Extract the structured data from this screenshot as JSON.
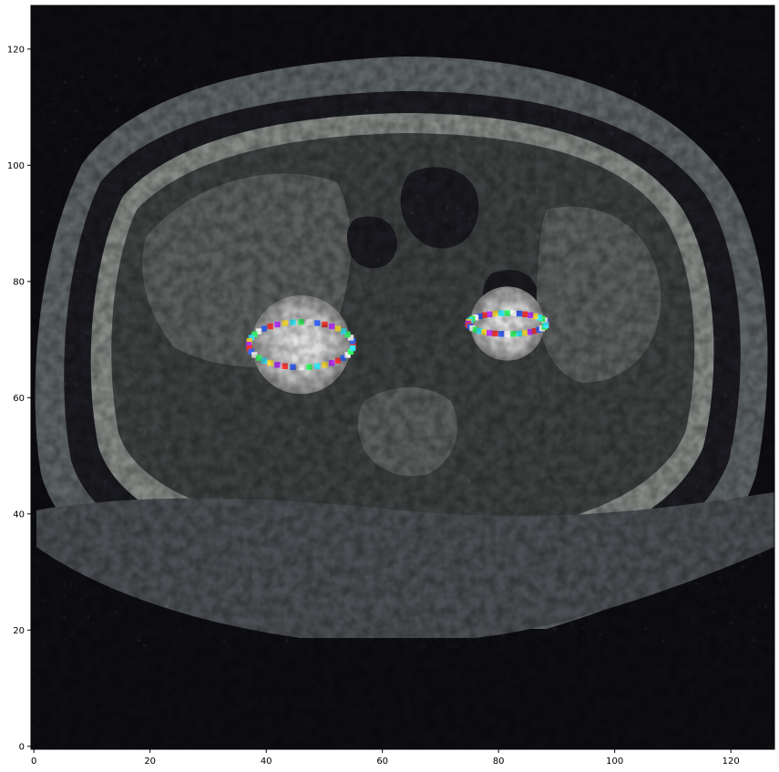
{
  "image": {
    "kind": "axial CT slice (abdomen) with segmentation overlay",
    "background_color": "#0e0d12",
    "body_tone": "#5e6464",
    "soft_tissue_tone": "#858a86",
    "dark_tissue_tone": "#1a1a20",
    "overlay_colors": [
      "#ff3b3b",
      "#ffe23b",
      "#3bff6a",
      "#3b6bff",
      "#c03bff",
      "#3bf0ff",
      "#ffffff"
    ],
    "grid": false,
    "colorbar": false
  },
  "axes": {
    "x_ticks": [
      "0",
      "20",
      "40",
      "60",
      "80",
      "100",
      "120"
    ],
    "y_ticks": [
      "0",
      "20",
      "40",
      "60",
      "80",
      "100",
      "120"
    ],
    "xlim": [
      -0.5,
      127.5
    ],
    "ylim": [
      127.5,
      -0.5
    ]
  },
  "chart_data": {
    "type": "heatmap",
    "title": "",
    "xlabel": "",
    "ylabel": "",
    "xlim": [
      -0.5,
      127.5
    ],
    "ylim": [
      127.5,
      -0.5
    ],
    "x_ticks": [
      0,
      20,
      40,
      60,
      80,
      100,
      120
    ],
    "y_ticks": [
      0,
      20,
      40,
      60,
      80,
      100,
      120
    ],
    "highlighted_regions": [
      {
        "name": "",
        "x_range": [
          36,
          56
        ],
        "y_range": [
          61,
          74
        ]
      },
      {
        "name": "",
        "x_range": [
          74,
          89
        ],
        "y_range": [
          69,
          75
        ]
      }
    ]
  }
}
